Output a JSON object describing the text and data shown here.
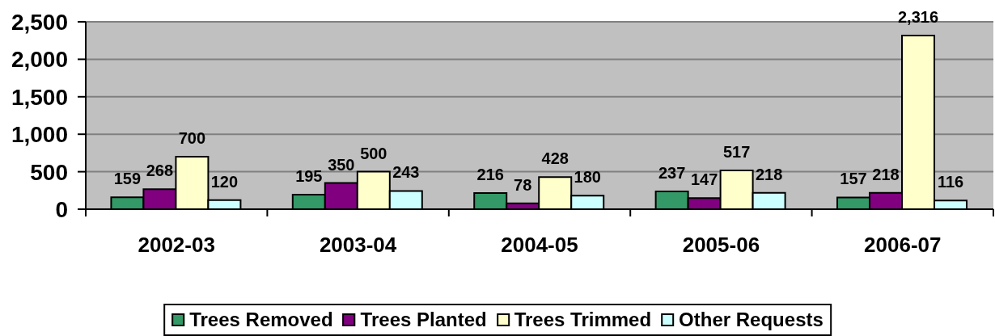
{
  "chart_data": {
    "type": "bar",
    "categories": [
      "2002-03",
      "2003-04",
      "2004-05",
      "2005-06",
      "2006-07"
    ],
    "series": [
      {
        "name": "Trees Removed",
        "color": "#339966",
        "values": [
          159,
          195,
          216,
          237,
          157
        ],
        "value_labels": [
          "159",
          "195",
          "216",
          "237",
          "157"
        ]
      },
      {
        "name": "Trees Planted",
        "color": "#800080",
        "values": [
          268,
          350,
          78,
          147,
          218
        ],
        "value_labels": [
          "268",
          "350",
          "78",
          "147",
          "218"
        ]
      },
      {
        "name": "Trees Trimmed",
        "color": "#ffffcc",
        "values": [
          700,
          500,
          428,
          517,
          2316
        ],
        "value_labels": [
          "700",
          "500",
          "428",
          "517",
          "2,316"
        ]
      },
      {
        "name": "Other Requests",
        "color": "#ccffff",
        "values": [
          120,
          243,
          180,
          218,
          116
        ],
        "value_labels": [
          "120",
          "243",
          "180",
          "218",
          "116"
        ]
      }
    ],
    "ylim": [
      0,
      2500
    ],
    "yticks": [
      0,
      500,
      {
        "value": 1000,
        "label": "1,000"
      },
      {
        "value": 1500,
        "label": "1,500"
      },
      {
        "value": 2000,
        "label": "2,000"
      },
      {
        "value": 2500,
        "label": "2,500"
      }
    ],
    "grid": "y",
    "legend": "bottom"
  }
}
